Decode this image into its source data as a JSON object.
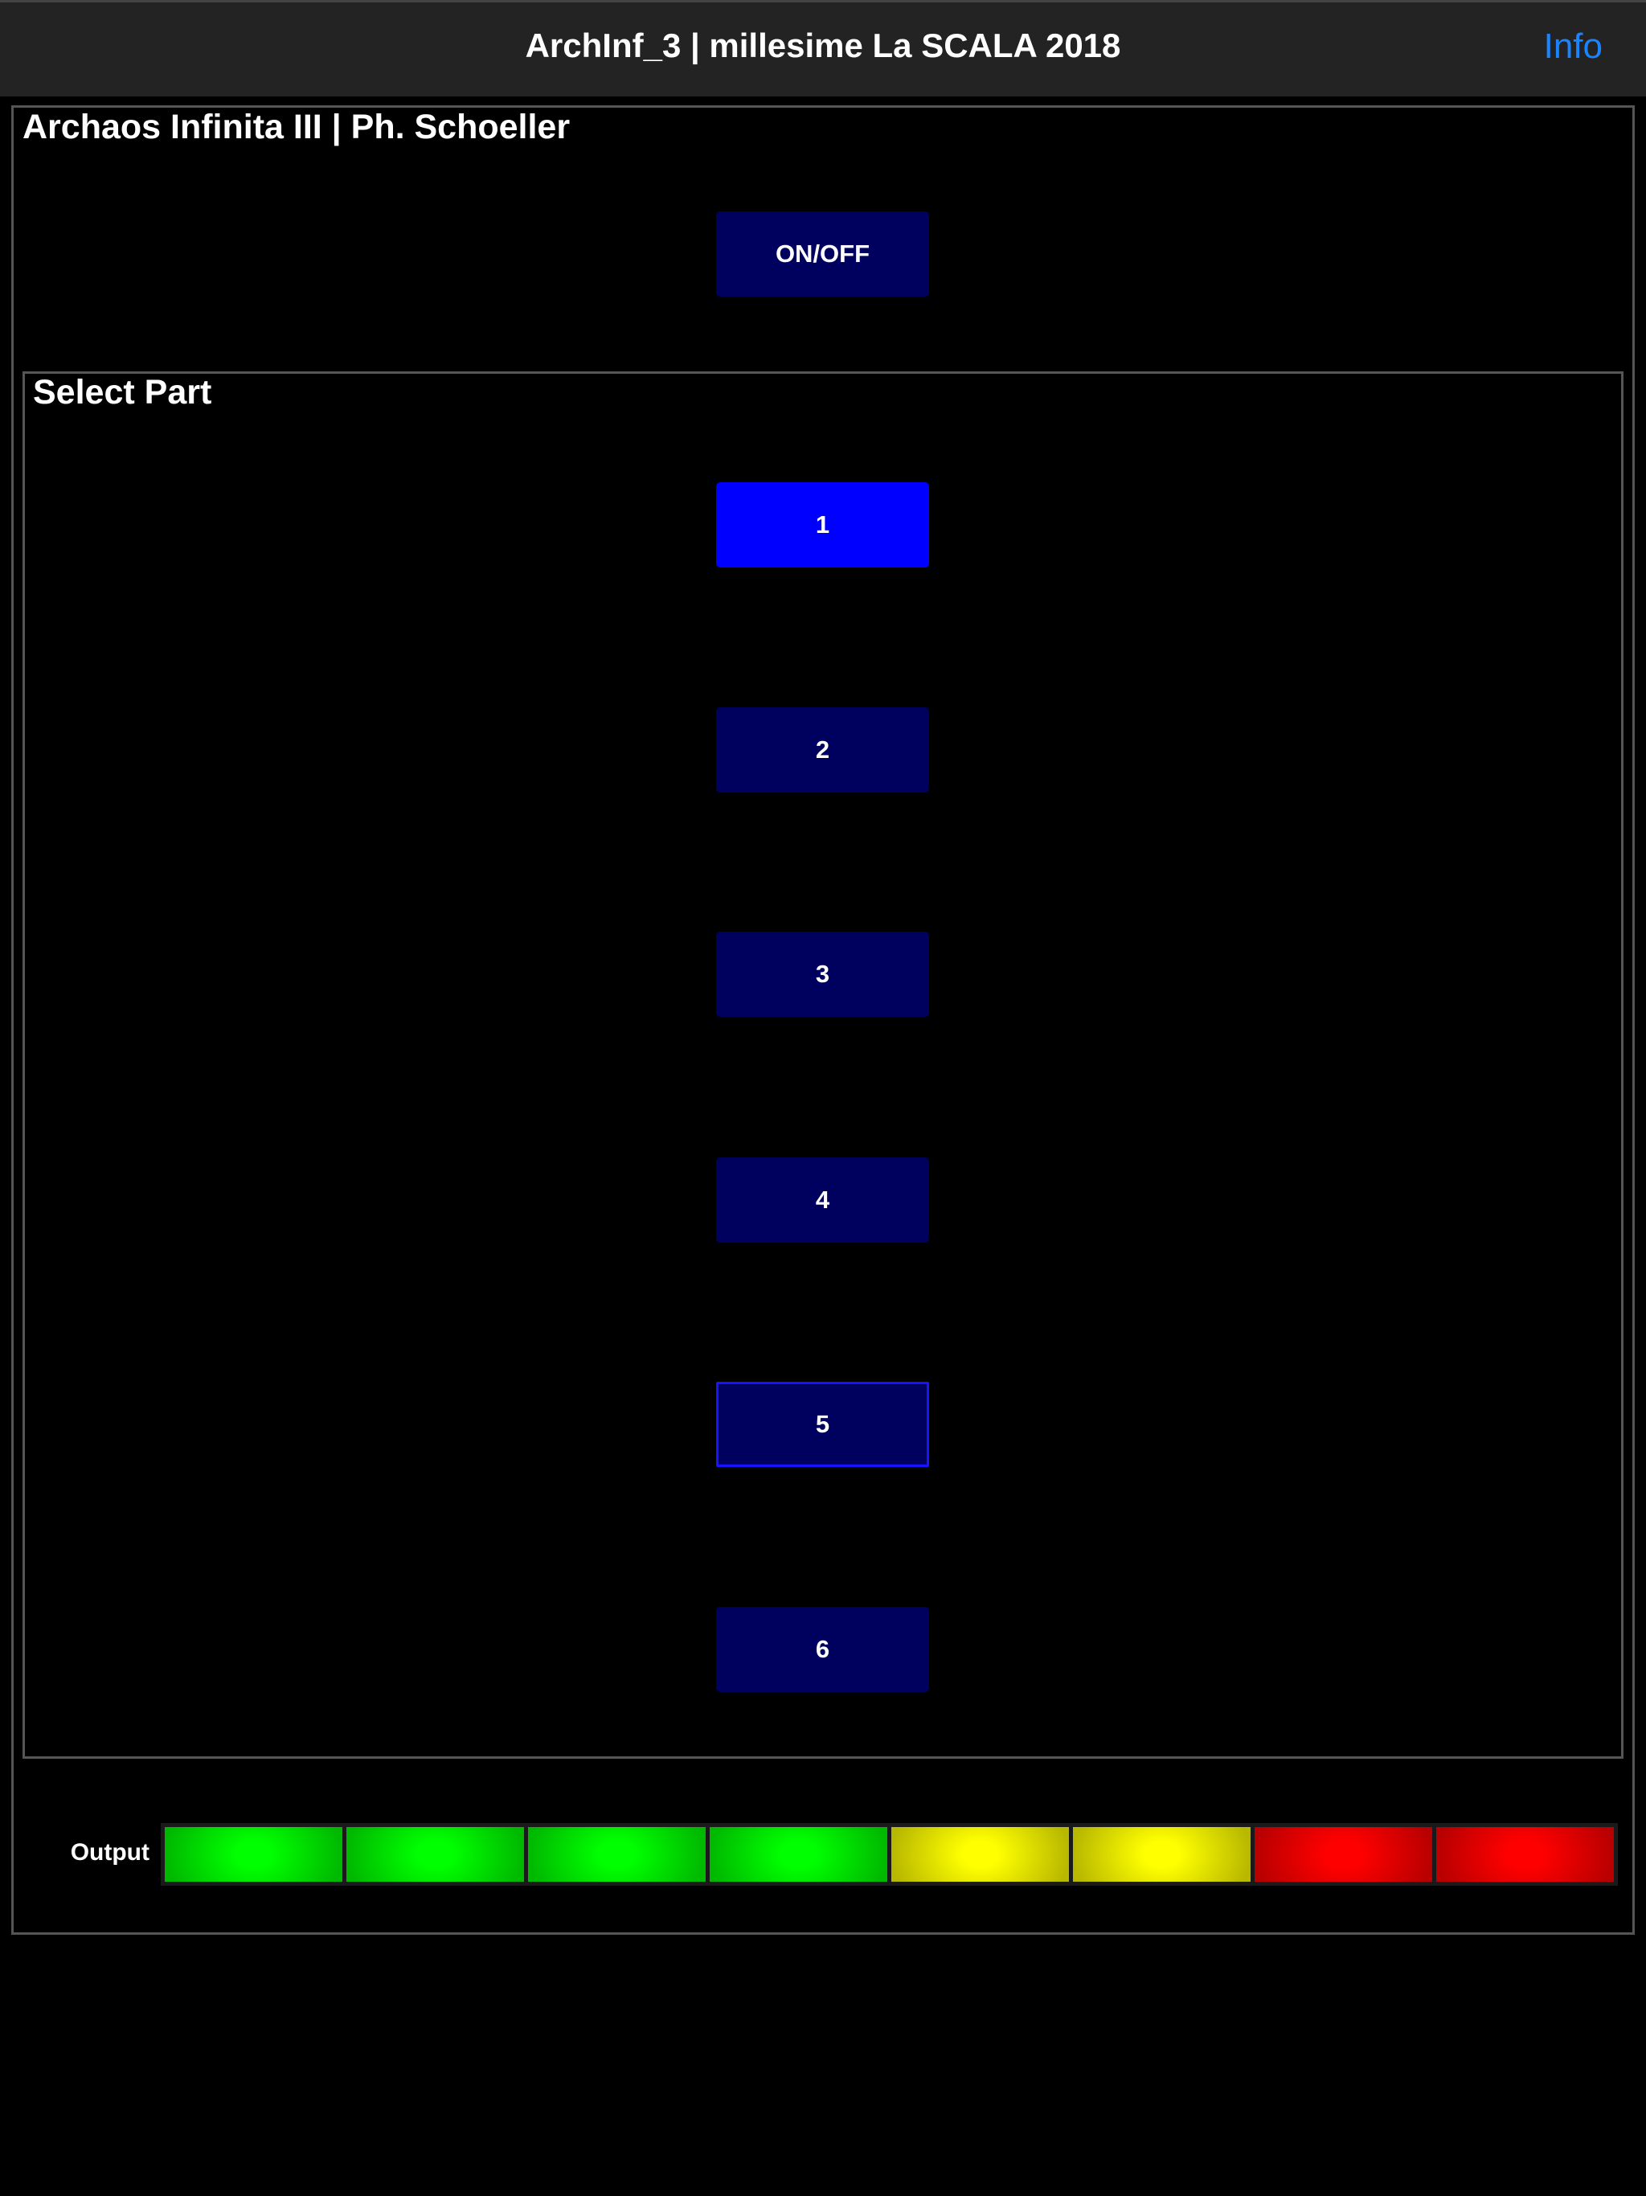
{
  "header": {
    "title": "ArchInf_3 | millesime La SCALA 2018",
    "info_label": "Info"
  },
  "panel": {
    "title": "Archaos Infinita III | Ph. Schoeller",
    "power_label": "ON/OFF"
  },
  "parts": {
    "title": "Select Part",
    "items": [
      {
        "label": "1",
        "state": "selected"
      },
      {
        "label": "2",
        "state": "normal"
      },
      {
        "label": "3",
        "state": "normal"
      },
      {
        "label": "4",
        "state": "normal"
      },
      {
        "label": "5",
        "state": "focused"
      },
      {
        "label": "6",
        "state": "normal"
      }
    ]
  },
  "output": {
    "label": "Output",
    "segments_lit": 8,
    "segment_colors": [
      "#00ff00",
      "#00ff00",
      "#00ff00",
      "#00ff00",
      "#ffff00",
      "#ffff00",
      "#ff0000",
      "#ff0000"
    ]
  },
  "colors": {
    "accent": "#1a84ff",
    "button": "#00005e",
    "button_selected": "#0000ff"
  }
}
